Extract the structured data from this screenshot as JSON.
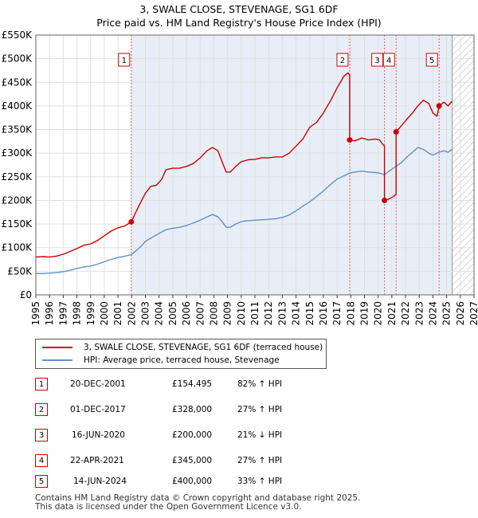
{
  "title_line1": "3, SWALE CLOSE, STEVENAGE, SG1 6DF",
  "title_line2": "Price paid vs. HM Land Registry's House Price Index (HPI)",
  "colors": {
    "property": "#cc0000",
    "hpi": "#6090c8",
    "grid": "#e0e0e0",
    "shade": "#e8eef8"
  },
  "chart_data": {
    "type": "line",
    "x_range": [
      1995,
      2027
    ],
    "y_range": [
      0,
      550000
    ],
    "y_ticks": [
      {
        "value": 0,
        "label": "£0"
      },
      {
        "value": 50000,
        "label": "£50K"
      },
      {
        "value": 100000,
        "label": "£100K"
      },
      {
        "value": 150000,
        "label": "£150K"
      },
      {
        "value": 200000,
        "label": "£200K"
      },
      {
        "value": 250000,
        "label": "£250K"
      },
      {
        "value": 300000,
        "label": "£300K"
      },
      {
        "value": 350000,
        "label": "£350K"
      },
      {
        "value": 400000,
        "label": "£400K"
      },
      {
        "value": 450000,
        "label": "£450K"
      },
      {
        "value": 500000,
        "label": "£500K"
      },
      {
        "value": 550000,
        "label": "£550K"
      }
    ],
    "x_ticks": [
      "1995",
      "1996",
      "1997",
      "1998",
      "1999",
      "2000",
      "2001",
      "2002",
      "2003",
      "2004",
      "2005",
      "2006",
      "2007",
      "2008",
      "2009",
      "2010",
      "2011",
      "2012",
      "2013",
      "2014",
      "2015",
      "2016",
      "2017",
      "2018",
      "2019",
      "2020",
      "2021",
      "2022",
      "2023",
      "2024",
      "2025",
      "2026",
      "2027"
    ],
    "forecast_from": 2025.4,
    "series": [
      {
        "name": "3, SWALE CLOSE, STEVENAGE, SG1 6DF (terraced house)",
        "points": [
          [
            1995.0,
            80000
          ],
          [
            1995.5,
            81000
          ],
          [
            1996.0,
            80000
          ],
          [
            1996.5,
            82000
          ],
          [
            1997.0,
            86000
          ],
          [
            1997.5,
            92000
          ],
          [
            1998.0,
            98000
          ],
          [
            1998.5,
            105000
          ],
          [
            1999.0,
            108000
          ],
          [
            1999.5,
            115000
          ],
          [
            2000.0,
            125000
          ],
          [
            2000.5,
            135000
          ],
          [
            2001.0,
            142000
          ],
          [
            2001.5,
            146000
          ],
          [
            2001.97,
            154495
          ],
          [
            2002.3,
            175000
          ],
          [
            2002.7,
            198000
          ],
          [
            2003.0,
            215000
          ],
          [
            2003.4,
            230000
          ],
          [
            2003.8,
            232000
          ],
          [
            2004.2,
            245000
          ],
          [
            2004.5,
            265000
          ],
          [
            2005.0,
            268000
          ],
          [
            2005.5,
            268000
          ],
          [
            2006.0,
            272000
          ],
          [
            2006.5,
            278000
          ],
          [
            2007.0,
            290000
          ],
          [
            2007.5,
            305000
          ],
          [
            2007.9,
            312000
          ],
          [
            2008.3,
            305000
          ],
          [
            2008.6,
            282000
          ],
          [
            2008.9,
            260000
          ],
          [
            2009.2,
            260000
          ],
          [
            2009.6,
            272000
          ],
          [
            2010.0,
            282000
          ],
          [
            2010.5,
            286000
          ],
          [
            2011.0,
            287000
          ],
          [
            2011.5,
            290000
          ],
          [
            2012.0,
            290000
          ],
          [
            2012.5,
            292000
          ],
          [
            2013.0,
            292000
          ],
          [
            2013.5,
            300000
          ],
          [
            2014.0,
            315000
          ],
          [
            2014.5,
            330000
          ],
          [
            2015.0,
            355000
          ],
          [
            2015.5,
            365000
          ],
          [
            2016.0,
            385000
          ],
          [
            2016.5,
            410000
          ],
          [
            2017.0,
            438000
          ],
          [
            2017.5,
            463000
          ],
          [
            2017.8,
            470000
          ],
          [
            2017.92,
            465000
          ],
          [
            2017.92,
            328000
          ],
          [
            2018.3,
            326000
          ],
          [
            2018.8,
            332000
          ],
          [
            2019.3,
            328000
          ],
          [
            2019.8,
            330000
          ],
          [
            2020.1,
            328000
          ],
          [
            2020.3,
            320000
          ],
          [
            2020.46,
            315000
          ],
          [
            2020.46,
            200000
          ],
          [
            2020.8,
            203000
          ],
          [
            2021.1,
            208000
          ],
          [
            2021.2,
            210000
          ],
          [
            2021.31,
            213000
          ],
          [
            2021.31,
            345000
          ],
          [
            2021.7,
            358000
          ],
          [
            2022.1,
            372000
          ],
          [
            2022.5,
            385000
          ],
          [
            2022.9,
            400000
          ],
          [
            2023.3,
            412000
          ],
          [
            2023.7,
            405000
          ],
          [
            2024.0,
            385000
          ],
          [
            2024.3,
            378000
          ],
          [
            2024.45,
            400000
          ],
          [
            2024.8,
            408000
          ],
          [
            2025.1,
            400000
          ],
          [
            2025.4,
            410000
          ]
        ]
      },
      {
        "name": "HPI: Average price, terraced house, Stevenage",
        "points": [
          [
            1995.0,
            45000
          ],
          [
            1995.5,
            45000
          ],
          [
            1996.0,
            46000
          ],
          [
            1996.5,
            47000
          ],
          [
            1997.0,
            49000
          ],
          [
            1997.5,
            52000
          ],
          [
            1998.0,
            56000
          ],
          [
            1998.5,
            59000
          ],
          [
            1999.0,
            61000
          ],
          [
            1999.5,
            65000
          ],
          [
            2000.0,
            70000
          ],
          [
            2000.5,
            75000
          ],
          [
            2001.0,
            79000
          ],
          [
            2001.5,
            82000
          ],
          [
            2001.97,
            85000
          ],
          [
            2002.3,
            93000
          ],
          [
            2002.7,
            103000
          ],
          [
            2003.0,
            113000
          ],
          [
            2003.5,
            122000
          ],
          [
            2004.0,
            130000
          ],
          [
            2004.5,
            138000
          ],
          [
            2005.0,
            141000
          ],
          [
            2005.5,
            143000
          ],
          [
            2006.0,
            147000
          ],
          [
            2006.5,
            152000
          ],
          [
            2007.0,
            158000
          ],
          [
            2007.5,
            165000
          ],
          [
            2007.9,
            170000
          ],
          [
            2008.3,
            165000
          ],
          [
            2008.6,
            155000
          ],
          [
            2008.9,
            143000
          ],
          [
            2009.2,
            143000
          ],
          [
            2009.6,
            150000
          ],
          [
            2010.0,
            155000
          ],
          [
            2010.5,
            157000
          ],
          [
            2011.0,
            158000
          ],
          [
            2011.5,
            159000
          ],
          [
            2012.0,
            160000
          ],
          [
            2012.5,
            161000
          ],
          [
            2013.0,
            164000
          ],
          [
            2013.5,
            169000
          ],
          [
            2014.0,
            178000
          ],
          [
            2014.5,
            188000
          ],
          [
            2015.0,
            197000
          ],
          [
            2015.5,
            208000
          ],
          [
            2016.0,
            220000
          ],
          [
            2016.5,
            233000
          ],
          [
            2017.0,
            245000
          ],
          [
            2017.5,
            252000
          ],
          [
            2017.92,
            258000
          ],
          [
            2018.3,
            260000
          ],
          [
            2018.8,
            262000
          ],
          [
            2019.3,
            260000
          ],
          [
            2019.8,
            259000
          ],
          [
            2020.1,
            258000
          ],
          [
            2020.46,
            254000
          ],
          [
            2020.8,
            262000
          ],
          [
            2021.3,
            272000
          ],
          [
            2021.7,
            280000
          ],
          [
            2022.1,
            292000
          ],
          [
            2022.5,
            302000
          ],
          [
            2022.9,
            312000
          ],
          [
            2023.3,
            308000
          ],
          [
            2023.7,
            300000
          ],
          [
            2024.0,
            296000
          ],
          [
            2024.45,
            302000
          ],
          [
            2024.8,
            305000
          ],
          [
            2025.1,
            302000
          ],
          [
            2025.4,
            308000
          ]
        ]
      }
    ],
    "sales": [
      {
        "num": "1",
        "x": 2001.97,
        "price": 154495
      },
      {
        "num": "2",
        "x": 2017.92,
        "price": 328000
      },
      {
        "num": "3",
        "x": 2020.46,
        "price": 200000
      },
      {
        "num": "4",
        "x": 2021.31,
        "price": 345000
      },
      {
        "num": "5",
        "x": 2024.45,
        "price": 400000
      }
    ]
  },
  "legend": {
    "property_label": "3, SWALE CLOSE, STEVENAGE, SG1 6DF (terraced house)",
    "hpi_label": "HPI: Average price, terraced house, Stevenage"
  },
  "sales_table": [
    {
      "num": "1",
      "date": "20-DEC-2001",
      "price": "£154,495",
      "hpi": "82% ↑ HPI"
    },
    {
      "num": "2",
      "date": "01-DEC-2017",
      "price": "£328,000",
      "hpi": "27% ↑ HPI"
    },
    {
      "num": "3",
      "date": "16-JUN-2020",
      "price": "£200,000",
      "hpi": "21% ↓ HPI"
    },
    {
      "num": "4",
      "date": "22-APR-2021",
      "price": "£345,000",
      "hpi": "27% ↑ HPI"
    },
    {
      "num": "5",
      "date": "14-JUN-2024",
      "price": "£400,000",
      "hpi": "33% ↑ HPI"
    }
  ],
  "footer_line1": "Contains HM Land Registry data © Crown copyright and database right 2025.",
  "footer_line2": "This data is licensed under the Open Government Licence v3.0."
}
